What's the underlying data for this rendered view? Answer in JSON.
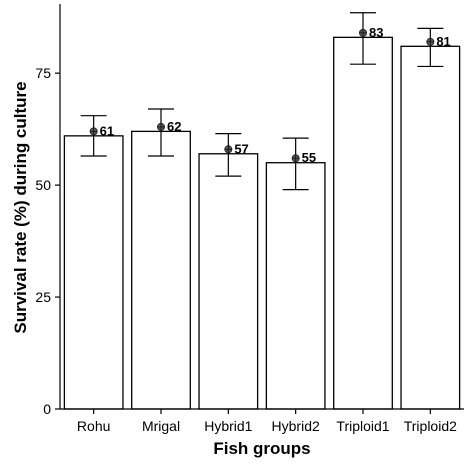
{
  "chart_data": {
    "type": "bar",
    "title": "",
    "xlabel": "Fish groups",
    "ylabel": "Survival rate (%) during culture",
    "categories": [
      "Rohu",
      "Mrigal",
      "Hybrid1",
      "Hybrid2",
      "Triploid1",
      "Triploid2"
    ],
    "values": [
      61,
      62,
      57,
      55,
      83,
      81
    ],
    "data_labels": [
      "61",
      "62",
      "57",
      "55",
      "83",
      "81"
    ],
    "markers": [
      62,
      63,
      58,
      56,
      84,
      82
    ],
    "error_upper": [
      65.5,
      67,
      61.5,
      60.5,
      88.5,
      85
    ],
    "error_lower": [
      56.5,
      56.5,
      52,
      49,
      77,
      76.5
    ],
    "ylim": [
      0,
      90
    ],
    "yticks": [
      0,
      25,
      50,
      75
    ],
    "ytick_labels": [
      "0",
      "25",
      "50",
      "75"
    ],
    "grid": false,
    "legend": "none",
    "colors": {
      "bar_fill": "#ffffff",
      "bar_stroke": "#000000",
      "marker": "#555555"
    }
  }
}
